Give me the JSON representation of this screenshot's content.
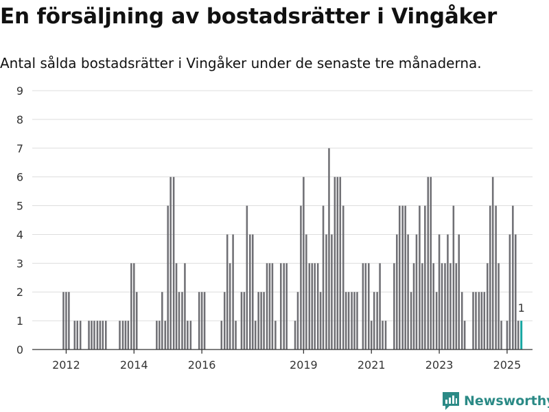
{
  "header": {
    "title": "En försäljning av bostadsrätter i Vingåker",
    "subtitle": "Antal sålda bostadsrätter i Vingåker under de senaste tre månaderna."
  },
  "brand": {
    "name": "Newsworthy",
    "icon": "newsworthy-logo-icon",
    "color": "#2b8a86"
  },
  "colors": {
    "bar": "#6f6f74",
    "highlight": "#16a6a1",
    "grid": "#dddddd",
    "axis": "#333333"
  },
  "chart_data": {
    "type": "bar",
    "ylim": [
      0,
      9
    ],
    "yticks": [
      0,
      1,
      2,
      3,
      4,
      5,
      6,
      7,
      8,
      9
    ],
    "xlim": [
      2011.0,
      2025.75
    ],
    "xticks": [
      2012,
      2014,
      2016,
      2019,
      2021,
      2023,
      2025
    ],
    "grid": true,
    "x": [
      2011.08,
      2011.17,
      2011.25,
      2011.33,
      2011.42,
      2011.5,
      2011.58,
      2011.67,
      2011.75,
      2011.83,
      2011.92,
      2012.0,
      2012.08,
      2012.17,
      2012.25,
      2012.33,
      2012.42,
      2012.5,
      2012.58,
      2012.67,
      2012.75,
      2012.83,
      2012.92,
      2013.0,
      2013.08,
      2013.17,
      2013.25,
      2013.33,
      2013.42,
      2013.5,
      2013.58,
      2013.67,
      2013.75,
      2013.83,
      2013.92,
      2014.0,
      2014.08,
      2014.17,
      2014.25,
      2014.33,
      2014.42,
      2014.5,
      2014.58,
      2014.67,
      2014.75,
      2014.83,
      2014.92,
      2015.0,
      2015.08,
      2015.17,
      2015.25,
      2015.33,
      2015.42,
      2015.5,
      2015.58,
      2015.67,
      2015.75,
      2015.83,
      2015.92,
      2016.0,
      2016.08,
      2016.17,
      2016.25,
      2016.33,
      2016.42,
      2016.5,
      2016.58,
      2016.67,
      2016.75,
      2016.83,
      2016.92,
      2017.0,
      2017.08,
      2017.17,
      2017.25,
      2017.33,
      2017.42,
      2017.5,
      2017.58,
      2017.67,
      2017.75,
      2017.83,
      2017.92,
      2018.0,
      2018.08,
      2018.17,
      2018.25,
      2018.33,
      2018.42,
      2018.5,
      2018.58,
      2018.67,
      2018.75,
      2018.83,
      2018.92,
      2019.0,
      2019.08,
      2019.17,
      2019.25,
      2019.33,
      2019.42,
      2019.5,
      2019.58,
      2019.67,
      2019.75,
      2019.83,
      2019.92,
      2020.0,
      2020.08,
      2020.17,
      2020.25,
      2020.33,
      2020.42,
      2020.5,
      2020.58,
      2020.67,
      2020.75,
      2020.83,
      2020.92,
      2021.0,
      2021.08,
      2021.17,
      2021.25,
      2021.33,
      2021.42,
      2021.5,
      2021.58,
      2021.67,
      2021.75,
      2021.83,
      2021.92,
      2022.0,
      2022.08,
      2022.17,
      2022.25,
      2022.33,
      2022.42,
      2022.5,
      2022.58,
      2022.67,
      2022.75,
      2022.83,
      2022.92,
      2023.0,
      2023.08,
      2023.17,
      2023.25,
      2023.33,
      2023.42,
      2023.5,
      2023.58,
      2023.67,
      2023.75,
      2023.83,
      2023.92,
      2024.0,
      2024.08,
      2024.17,
      2024.25,
      2024.33,
      2024.42,
      2024.5,
      2024.58,
      2024.67,
      2024.75,
      2024.83,
      2024.92,
      2025.0,
      2025.08,
      2025.17,
      2025.25,
      2025.33
    ],
    "values": [
      0,
      0,
      0,
      0,
      0,
      0,
      0,
      0,
      0,
      0,
      2,
      2,
      2,
      0,
      1,
      1,
      1,
      0,
      0,
      1,
      1,
      1,
      1,
      1,
      1,
      1,
      0,
      0,
      0,
      0,
      1,
      1,
      1,
      1,
      3,
      3,
      2,
      0,
      0,
      0,
      0,
      0,
      0,
      1,
      1,
      2,
      1,
      5,
      6,
      6,
      3,
      2,
      2,
      3,
      1,
      1,
      0,
      0,
      2,
      2,
      2,
      0,
      0,
      0,
      0,
      0,
      1,
      2,
      4,
      3,
      4,
      1,
      0,
      2,
      2,
      5,
      4,
      4,
      1,
      2,
      2,
      2,
      3,
      3,
      3,
      1,
      0,
      3,
      3,
      3,
      0,
      0,
      1,
      2,
      5,
      6,
      4,
      3,
      3,
      3,
      3,
      2,
      5,
      4,
      7,
      4,
      6,
      6,
      6,
      5,
      2,
      2,
      2,
      2,
      2,
      0,
      3,
      3,
      3,
      1,
      2,
      2,
      3,
      1,
      1,
      0,
      0,
      3,
      4,
      5,
      5,
      5,
      4,
      2,
      3,
      4,
      5,
      3,
      5,
      6,
      6,
      3,
      2,
      4,
      3,
      3,
      4,
      3,
      5,
      3,
      4,
      2,
      1,
      0,
      0,
      2,
      2,
      2,
      2,
      2,
      3,
      5,
      6,
      5,
      3,
      1,
      0,
      1,
      4,
      5,
      4,
      1
    ],
    "highlight": {
      "x": 2025.42,
      "value": 1,
      "label": "1"
    }
  }
}
